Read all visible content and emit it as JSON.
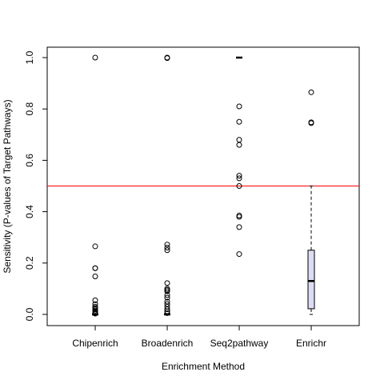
{
  "chart_data": {
    "type": "boxplot",
    "xlabel": "Enrichment Method",
    "ylabel": "Sensitivity (P-values of Target Pathways)",
    "ylim": [
      0,
      1
    ],
    "yticks": [
      "0.0",
      "0.2",
      "0.4",
      "0.6",
      "0.8",
      "1.0"
    ],
    "categories": [
      "Chipenrich",
      "Broadenrich",
      "Seq2pathway",
      "Enrichr"
    ],
    "reference_line": {
      "y": 0.5,
      "color": "#ff0000"
    },
    "box_fill": "#dcdcf5",
    "groups": [
      {
        "name": "Chipenrich",
        "q1": 0.0,
        "median": 0.0,
        "q3": 0.0,
        "whisker_low": 0.0,
        "whisker_high": 0.0,
        "outliers": [
          1.0,
          0.265,
          0.18,
          0.18,
          0.148,
          0.055,
          0.04,
          0.03,
          0.025,
          0.02,
          0.015,
          0.01,
          0.008,
          0.005,
          0.003
        ]
      },
      {
        "name": "Broadenrich",
        "q1": 0.0,
        "median": 0.0,
        "q3": 0.0,
        "whisker_low": 0.0,
        "whisker_high": 0.0,
        "outliers": [
          1.0,
          0.998,
          0.272,
          0.26,
          0.25,
          0.122,
          0.1,
          0.095,
          0.09,
          0.075,
          0.065,
          0.05,
          0.04,
          0.03,
          0.02,
          0.012,
          0.005
        ]
      },
      {
        "name": "Seq2pathway",
        "q1": 1.0,
        "median": 1.0,
        "q3": 1.0,
        "whisker_low": 1.0,
        "whisker_high": 1.0,
        "outliers": [
          0.81,
          0.75,
          0.68,
          0.66,
          0.54,
          0.53,
          0.5,
          0.385,
          0.38,
          0.34,
          0.235
        ]
      },
      {
        "name": "Enrichr",
        "q1": 0.022,
        "median": 0.13,
        "q3": 0.25,
        "whisker_low": 0.0,
        "whisker_high": 0.5,
        "outliers": [
          0.865,
          0.748,
          0.745
        ]
      }
    ]
  }
}
